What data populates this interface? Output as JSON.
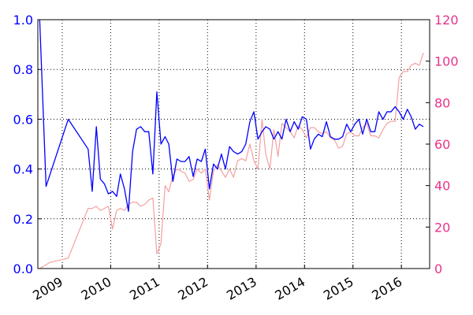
{
  "chart_data": {
    "type": "line",
    "grid": true,
    "x_ticks": [
      "2009",
      "2010",
      "2011",
      "2012",
      "2013",
      "2014",
      "2015",
      "2016"
    ],
    "x_range": [
      "2008-07-01",
      "2016-08-01"
    ],
    "y_left": {
      "range": [
        0.0,
        1.0
      ],
      "ticks": [
        "0.0",
        "0.2",
        "0.4",
        "0.6",
        "0.8",
        "1.0"
      ],
      "color": "#0000ff"
    },
    "y_right": {
      "range": [
        0,
        120
      ],
      "ticks": [
        "0",
        "20",
        "40",
        "60",
        "80",
        "100",
        "120"
      ],
      "color": "#e8338a"
    },
    "series": [
      {
        "axis": "left",
        "color": "#0000ff",
        "points": [
          [
            "2008-07-15",
            1.0
          ],
          [
            "2008-09-01",
            0.33
          ],
          [
            "2009-02-15",
            0.6
          ],
          [
            "2009-07-15",
            0.48
          ],
          [
            "2009-08-15",
            0.31
          ],
          [
            "2009-09-15",
            0.57
          ],
          [
            "2009-10-15",
            0.36
          ],
          [
            "2009-11-15",
            0.34
          ],
          [
            "2009-12-15",
            0.3
          ],
          [
            "2010-01-15",
            0.31
          ],
          [
            "2010-02-15",
            0.29
          ],
          [
            "2010-03-15",
            0.38
          ],
          [
            "2010-04-15",
            0.32
          ],
          [
            "2010-05-15",
            0.23
          ],
          [
            "2010-06-15",
            0.47
          ],
          [
            "2010-07-15",
            0.56
          ],
          [
            "2010-08-15",
            0.57
          ],
          [
            "2010-09-15",
            0.55
          ],
          [
            "2010-10-15",
            0.55
          ],
          [
            "2010-11-15",
            0.38
          ],
          [
            "2010-12-15",
            0.71
          ],
          [
            "2011-01-15",
            0.5
          ],
          [
            "2011-02-15",
            0.53
          ],
          [
            "2011-03-15",
            0.5
          ],
          [
            "2011-04-15",
            0.35
          ],
          [
            "2011-05-15",
            0.44
          ],
          [
            "2011-06-15",
            0.43
          ],
          [
            "2011-07-15",
            0.43
          ],
          [
            "2011-08-15",
            0.45
          ],
          [
            "2011-09-15",
            0.37
          ],
          [
            "2011-10-15",
            0.44
          ],
          [
            "2011-11-15",
            0.43
          ],
          [
            "2011-12-15",
            0.48
          ],
          [
            "2012-01-15",
            0.32
          ],
          [
            "2012-02-15",
            0.42
          ],
          [
            "2012-03-15",
            0.4
          ],
          [
            "2012-04-15",
            0.46
          ],
          [
            "2012-05-15",
            0.4
          ],
          [
            "2012-06-15",
            0.49
          ],
          [
            "2012-07-15",
            0.47
          ],
          [
            "2012-08-15",
            0.46
          ],
          [
            "2012-09-15",
            0.47
          ],
          [
            "2012-10-15",
            0.5
          ],
          [
            "2012-11-15",
            0.59
          ],
          [
            "2012-12-15",
            0.63
          ],
          [
            "2013-01-15",
            0.52
          ],
          [
            "2013-02-15",
            0.55
          ],
          [
            "2013-03-15",
            0.57
          ],
          [
            "2013-04-15",
            0.56
          ],
          [
            "2013-05-15",
            0.52
          ],
          [
            "2013-06-15",
            0.55
          ],
          [
            "2013-07-15",
            0.52
          ],
          [
            "2013-08-15",
            0.6
          ],
          [
            "2013-09-15",
            0.55
          ],
          [
            "2013-10-15",
            0.59
          ],
          [
            "2013-11-15",
            0.56
          ],
          [
            "2013-12-15",
            0.61
          ],
          [
            "2014-01-15",
            0.6
          ],
          [
            "2014-02-15",
            0.48
          ],
          [
            "2014-03-15",
            0.52
          ],
          [
            "2014-04-15",
            0.54
          ],
          [
            "2014-05-15",
            0.53
          ],
          [
            "2014-06-15",
            0.59
          ],
          [
            "2014-07-15",
            0.53
          ],
          [
            "2014-08-15",
            0.52
          ],
          [
            "2014-09-15",
            0.52
          ],
          [
            "2014-10-15",
            0.53
          ],
          [
            "2014-11-15",
            0.58
          ],
          [
            "2014-12-15",
            0.55
          ],
          [
            "2015-01-15",
            0.58
          ],
          [
            "2015-02-15",
            0.6
          ],
          [
            "2015-03-15",
            0.54
          ],
          [
            "2015-04-15",
            0.6
          ],
          [
            "2015-05-15",
            0.55
          ],
          [
            "2015-06-15",
            0.55
          ],
          [
            "2015-07-15",
            0.63
          ],
          [
            "2015-08-15",
            0.6
          ],
          [
            "2015-09-15",
            0.63
          ],
          [
            "2015-10-15",
            0.63
          ],
          [
            "2015-11-15",
            0.65
          ],
          [
            "2015-12-15",
            0.63
          ],
          [
            "2016-01-15",
            0.6
          ],
          [
            "2016-02-15",
            0.64
          ],
          [
            "2016-03-15",
            0.61
          ],
          [
            "2016-04-15",
            0.56
          ],
          [
            "2016-05-15",
            0.58
          ],
          [
            "2016-06-15",
            0.57
          ]
        ]
      },
      {
        "axis": "right",
        "color": "#f4a0a0",
        "points": [
          [
            "2008-07-15",
            0
          ],
          [
            "2008-10-01",
            3
          ],
          [
            "2009-02-15",
            5
          ],
          [
            "2009-07-15",
            29
          ],
          [
            "2009-08-15",
            29
          ],
          [
            "2009-09-15",
            30
          ],
          [
            "2009-10-15",
            28
          ],
          [
            "2009-11-15",
            29
          ],
          [
            "2009-12-15",
            30
          ],
          [
            "2010-01-15",
            19
          ],
          [
            "2010-02-15",
            28
          ],
          [
            "2010-03-15",
            29
          ],
          [
            "2010-04-15",
            28
          ],
          [
            "2010-05-15",
            31
          ],
          [
            "2010-06-15",
            32
          ],
          [
            "2010-07-15",
            32
          ],
          [
            "2010-08-15",
            30
          ],
          [
            "2010-09-15",
            31
          ],
          [
            "2010-10-15",
            33
          ],
          [
            "2010-11-15",
            34
          ],
          [
            "2010-12-15",
            7
          ],
          [
            "2011-01-15",
            12
          ],
          [
            "2011-02-15",
            40
          ],
          [
            "2011-03-15",
            37
          ],
          [
            "2011-04-15",
            45
          ],
          [
            "2011-05-15",
            48
          ],
          [
            "2011-06-15",
            47
          ],
          [
            "2011-07-15",
            46
          ],
          [
            "2011-08-15",
            42
          ],
          [
            "2011-09-15",
            43
          ],
          [
            "2011-10-15",
            48
          ],
          [
            "2011-11-15",
            46
          ],
          [
            "2011-12-15",
            48
          ],
          [
            "2012-01-15",
            33
          ],
          [
            "2012-02-15",
            47
          ],
          [
            "2012-03-15",
            50
          ],
          [
            "2012-04-15",
            47
          ],
          [
            "2012-05-15",
            44
          ],
          [
            "2012-06-15",
            48
          ],
          [
            "2012-07-15",
            44
          ],
          [
            "2012-08-15",
            52
          ],
          [
            "2012-09-15",
            53
          ],
          [
            "2012-10-15",
            52
          ],
          [
            "2012-11-15",
            60
          ],
          [
            "2012-12-15",
            52
          ],
          [
            "2013-01-15",
            48
          ],
          [
            "2013-02-15",
            72
          ],
          [
            "2013-03-15",
            55
          ],
          [
            "2013-04-15",
            48
          ],
          [
            "2013-05-15",
            67
          ],
          [
            "2013-06-15",
            54
          ],
          [
            "2013-07-15",
            70
          ],
          [
            "2013-08-15",
            68
          ],
          [
            "2013-09-15",
            66
          ],
          [
            "2013-10-15",
            63
          ],
          [
            "2013-11-15",
            69
          ],
          [
            "2013-12-15",
            67
          ],
          [
            "2014-01-15",
            63
          ],
          [
            "2014-02-15",
            68
          ],
          [
            "2014-03-15",
            68
          ],
          [
            "2014-04-15",
            66
          ],
          [
            "2014-05-15",
            65
          ],
          [
            "2014-06-15",
            66
          ],
          [
            "2014-07-15",
            63
          ],
          [
            "2014-08-15",
            62
          ],
          [
            "2014-09-15",
            58
          ],
          [
            "2014-10-15",
            59
          ],
          [
            "2014-11-15",
            65
          ],
          [
            "2014-12-15",
            66
          ],
          [
            "2015-01-15",
            64
          ],
          [
            "2015-02-15",
            64
          ],
          [
            "2015-03-15",
            68
          ],
          [
            "2015-04-15",
            70
          ],
          [
            "2015-05-15",
            64
          ],
          [
            "2015-06-15",
            64
          ],
          [
            "2015-07-15",
            63
          ],
          [
            "2015-08-15",
            67
          ],
          [
            "2015-09-15",
            70
          ],
          [
            "2015-10-15",
            71
          ],
          [
            "2015-11-15",
            71
          ],
          [
            "2015-12-15",
            92
          ],
          [
            "2016-01-15",
            95
          ],
          [
            "2016-02-15",
            95
          ],
          [
            "2016-03-15",
            98
          ],
          [
            "2016-04-15",
            99
          ],
          [
            "2016-05-15",
            98
          ],
          [
            "2016-06-15",
            104
          ]
        ]
      }
    ]
  }
}
